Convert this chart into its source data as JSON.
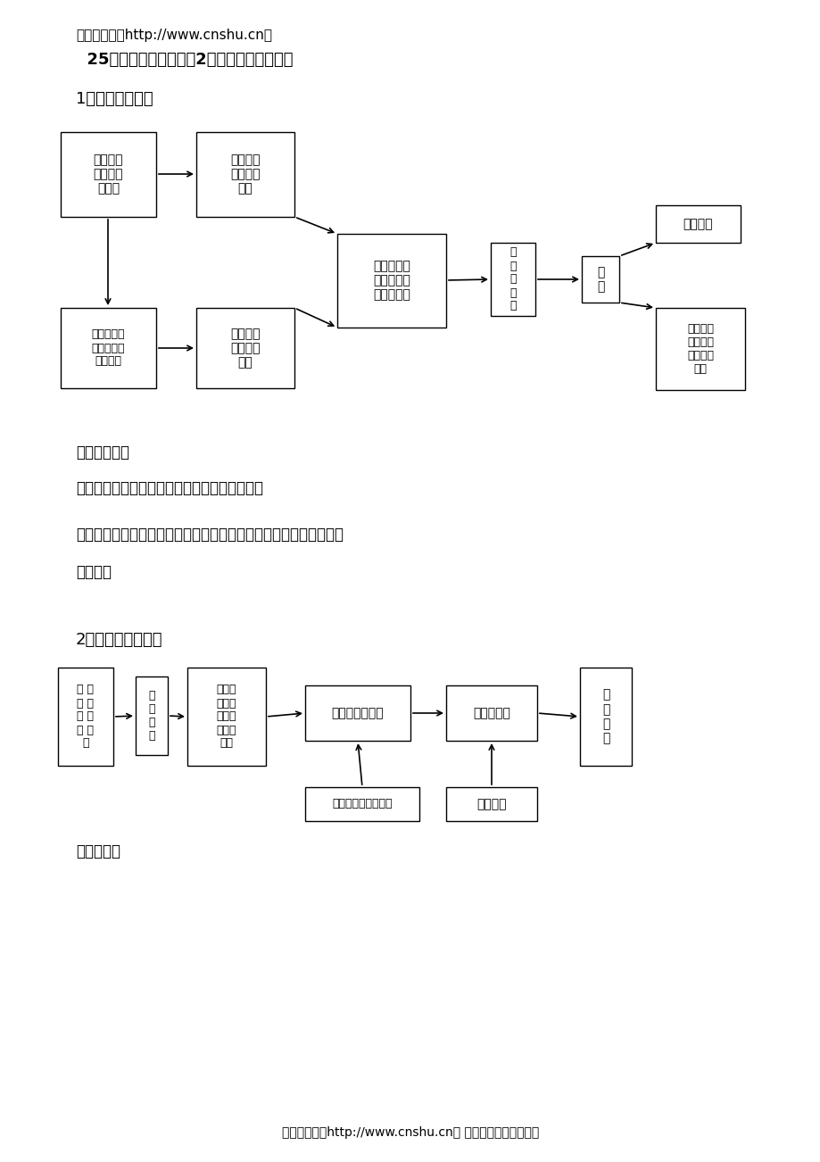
{
  "bg_color": "#ffffff",
  "header_line1": "精品资料网（http://www.cnshu.cn）",
  "header_line2": "  25万份精华管理资料，2万多集管理视频讲座",
  "section1_title": "1、年度需求计划",
  "section2_title": "2、非年度需求计划",
  "text_block1": "相关的表格：",
  "text_block2": "《部门年度用人计划申请表》由用人部门填写；",
  "text_block3": "《公司年度人力资源规划》、《年度人员需求计划汇总》由人力资源",
  "text_block4": "部填写；",
  "text_block5": "相关表格：",
  "footer": "精品资料网（http://www.cnshu.cn） 专业提供企管培训资料",
  "d1_b1": "公司近期\n战略规划\n及行动",
  "d1_b2": "公司人力\n资源发展\n规划",
  "d1_b3": "各业务单元\n发展规划及\n业务计划",
  "d1_b4": "部门年度\n人员需求\n计划",
  "d1_b5": "人力资源部\n汇总公司年\n度人员需求",
  "d1_b6": "总\n经\n理\n审\n批",
  "d1_b7": "实\n施",
  "d1_b8": "统一招聘",
  "d1_b9": "用人部门\n年度需求\n具体实施\n计划",
  "d2_bA": "部 门\n编 制\n计 划\n及 员\n变",
  "d2_bB": "人\n员\n需\n求",
  "d2_bC": "用人部\n门提出\n具体人\n员招募\n申请",
  "d2_bD": "人力资源部审核",
  "d2_bE": "总经理审批",
  "d2_bF": "实\n施\n招\n聘",
  "d2_bG": "部门提交岗位说明书",
  "d2_bH": "内部协调"
}
